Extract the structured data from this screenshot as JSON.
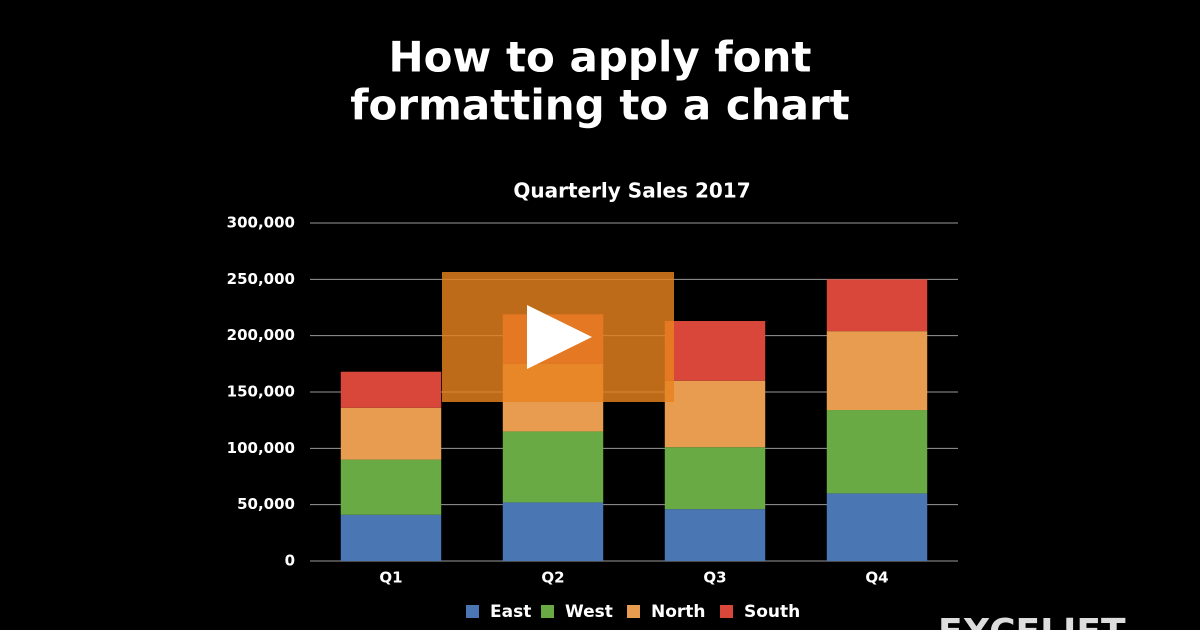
{
  "heading": [
    "How to apply font",
    "formatting to a chart"
  ],
  "brand": "EXCELJET",
  "chart_data": {
    "type": "stacked-bar",
    "title": "Quarterly Sales 2017",
    "categories": [
      "Q1",
      "Q2",
      "Q3",
      "Q4"
    ],
    "series": [
      {
        "name": "East",
        "color": "#4a76b4",
        "values": [
          41000,
          52000,
          46000,
          60000
        ]
      },
      {
        "name": "West",
        "color": "#6aaa45",
        "values": [
          49000,
          63000,
          55000,
          74000
        ]
      },
      {
        "name": "North",
        "color": "#e89c4f",
        "values": [
          46000,
          60000,
          59000,
          70000
        ]
      },
      {
        "name": "South",
        "color": "#d9473a",
        "values": [
          32000,
          44000,
          53000,
          46000
        ]
      }
    ],
    "ylim": [
      0,
      300000
    ],
    "yticks": [
      0,
      {
        "value": 50000,
        "label": "50,000"
      },
      {
        "value": 100000,
        "label": "100,000"
      },
      {
        "value": 150000,
        "label": "150,000"
      },
      {
        "value": 200000,
        "label": "200,000"
      },
      {
        "value": 250000,
        "label": "250,000"
      },
      {
        "value": 300000,
        "label": "300,000"
      }
    ],
    "grid": true,
    "legend": "bottom"
  }
}
